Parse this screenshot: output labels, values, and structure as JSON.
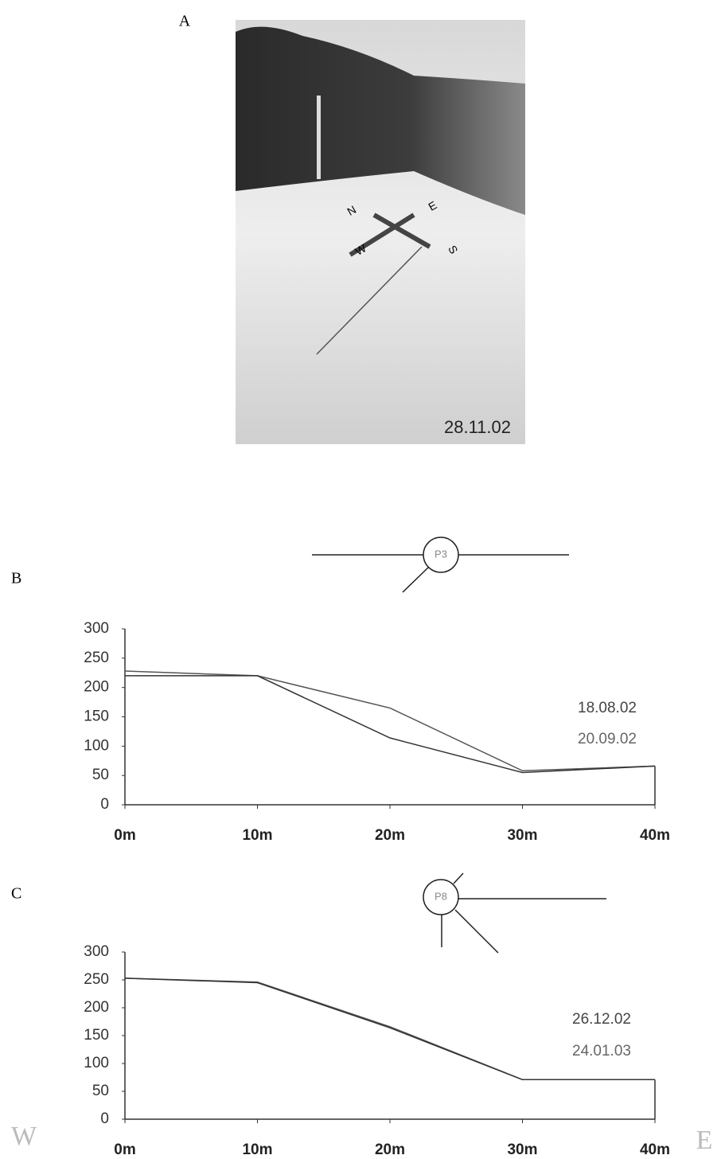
{
  "photo": {
    "panel": "A",
    "date": "28.11.02",
    "compass": [
      "N",
      "E",
      "S",
      "W"
    ]
  },
  "directions": [
    "W",
    "E"
  ],
  "chart_data": [
    {
      "type": "line",
      "panel": "B",
      "station": "P3",
      "categories": [
        "0m",
        "10m",
        "20m",
        "30m",
        "40m"
      ],
      "series": [
        {
          "name": "18.08.02",
          "color": "#555555",
          "values": [
            228,
            220,
            165,
            58,
            66
          ]
        },
        {
          "name": "20.09.02",
          "color": "#333333",
          "values": [
            220,
            220,
            114,
            55,
            66
          ]
        }
      ],
      "ylim": [
        0,
        300
      ],
      "yticks": [
        0,
        50,
        100,
        150,
        200,
        250,
        300
      ]
    },
    {
      "type": "line",
      "panel": "C",
      "station": "P8",
      "categories": [
        "0m",
        "10m",
        "20m",
        "30m",
        "40m"
      ],
      "series": [
        {
          "name": "26.12.02",
          "color": "#555555",
          "values": [
            253,
            246,
            166,
            71,
            71
          ]
        },
        {
          "name": "24.01.03",
          "color": "#333333",
          "values": [
            253,
            245,
            164,
            71,
            71
          ]
        }
      ],
      "ylim": [
        0,
        300
      ],
      "yticks": [
        0,
        50,
        100,
        150,
        200,
        250,
        300
      ]
    }
  ]
}
